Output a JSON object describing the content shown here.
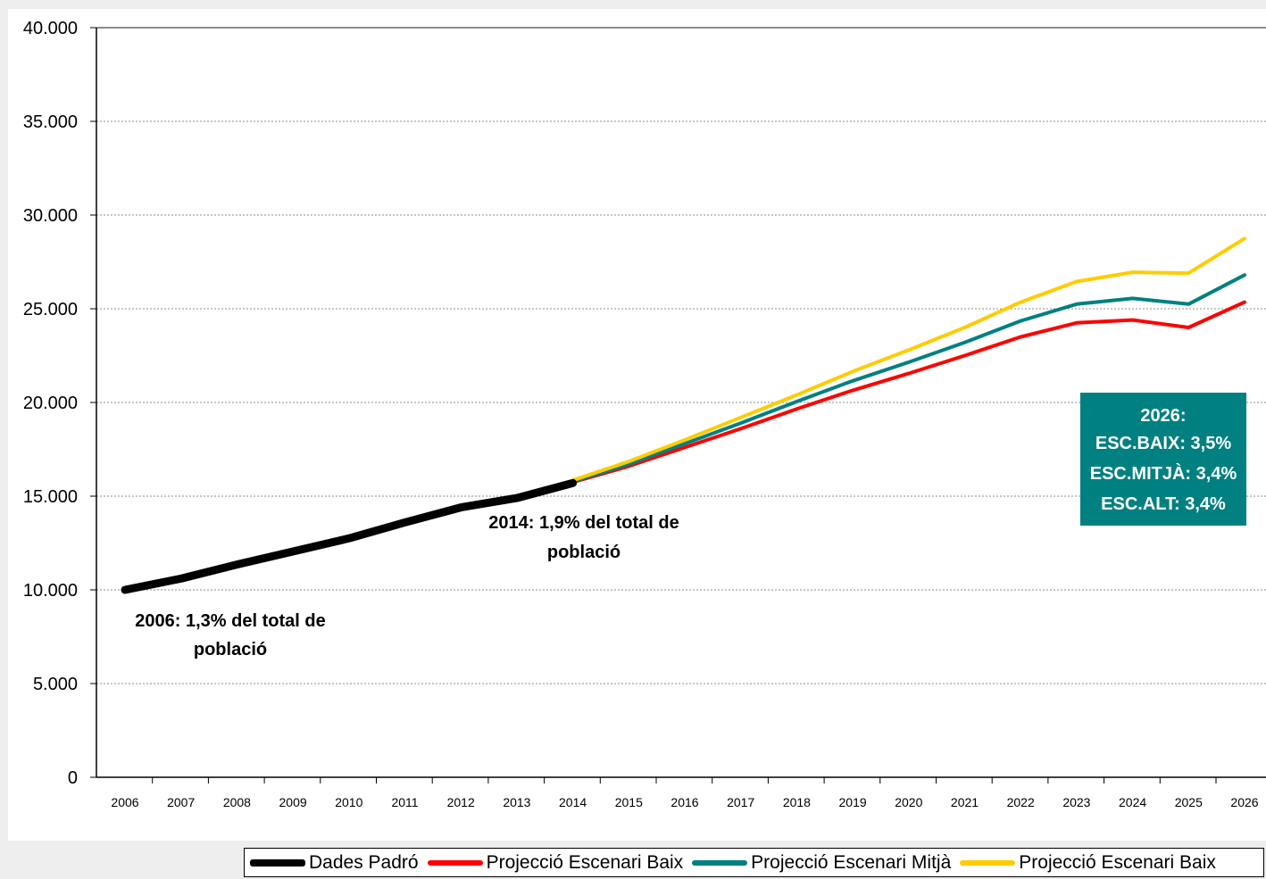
{
  "chart_data": {
    "type": "line",
    "x": [
      "2006",
      "2007",
      "2008",
      "2009",
      "2010",
      "2011",
      "2012",
      "2013",
      "2014",
      "2015",
      "2016",
      "2017",
      "2018",
      "2019",
      "2020",
      "2021",
      "2022",
      "2023",
      "2024",
      "2025",
      "2026"
    ],
    "ylim": [
      0,
      40000
    ],
    "yticks": [
      0,
      5000,
      10000,
      15000,
      20000,
      25000,
      30000,
      35000,
      40000
    ],
    "ytick_labels": [
      "0",
      "5.000",
      "10.000",
      "15.000",
      "20.000",
      "25.000",
      "30.000",
      "35.000",
      "40.000"
    ],
    "grid": "horizontal dotted",
    "legend_position": "bottom",
    "series": [
      {
        "name": "Dades Padró",
        "color": "#000000",
        "width": 9,
        "values": [
          10000,
          10600,
          11350,
          12050,
          12750,
          13600,
          14400,
          14900,
          15700,
          null,
          null,
          null,
          null,
          null,
          null,
          null,
          null,
          null,
          null,
          null,
          null
        ]
      },
      {
        "name": "Projecció Escenari Baix",
        "color": "#ff0000",
        "width": 4,
        "values": [
          null,
          null,
          null,
          null,
          null,
          null,
          null,
          null,
          15750,
          16600,
          17600,
          18600,
          19650,
          20650,
          21550,
          22500,
          23500,
          24250,
          24400,
          24000,
          25350
        ]
      },
      {
        "name": "Projecció Escenari Mitjà",
        "color": "#008080",
        "width": 4,
        "values": [
          null,
          null,
          null,
          null,
          null,
          null,
          null,
          null,
          15780,
          16700,
          17800,
          18900,
          20050,
          21150,
          22150,
          23200,
          24350,
          25250,
          25550,
          25250,
          26800
        ]
      },
      {
        "name": "Projecció Escenari Baix",
        "color": "#ffcc00",
        "width": 4,
        "values": [
          null,
          null,
          null,
          null,
          null,
          null,
          null,
          null,
          15850,
          16850,
          18000,
          19200,
          20400,
          21650,
          22800,
          24000,
          25350,
          26450,
          26950,
          26900,
          28750
        ]
      }
    ],
    "annotations": [
      {
        "id": "a2006",
        "lines": [
          "2006: 1,3% del total de",
          "població"
        ]
      },
      {
        "id": "a2014",
        "lines": [
          "2014: 1,9% del total de",
          "població"
        ]
      },
      {
        "id": "box2026",
        "bg": "#008080",
        "color": "#ffffff",
        "lines": [
          "2026:",
          "ESC.BAIX: 3,5%",
          "ESC.MITJÀ: 3,4%",
          "ESC.ALT: 3,4%"
        ]
      }
    ]
  }
}
